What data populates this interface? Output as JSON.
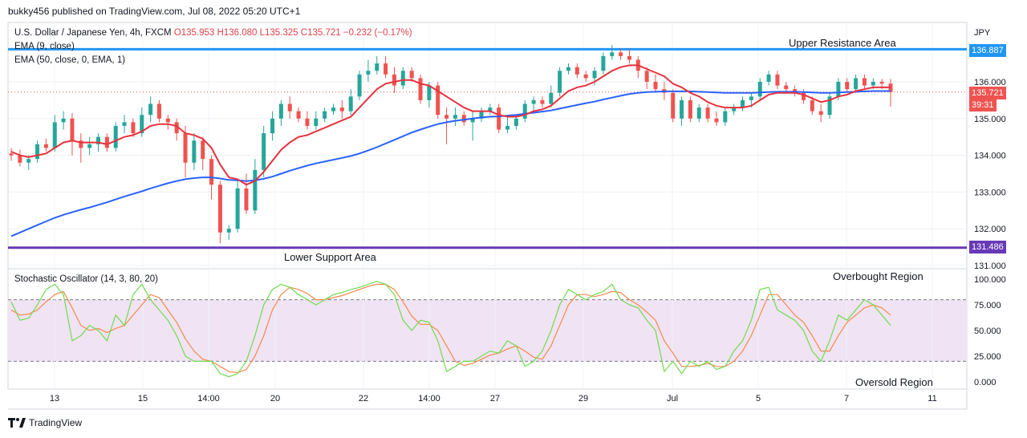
{
  "header": {
    "publish_note": "bukky456 published on TradingView.com, Jul 08, 2022 05:20 UTC+1"
  },
  "legend": {
    "symbol": "U.S. Dollar / Japanese Yen, 4h, FXCM",
    "open": "O135.953",
    "high": "H136.080",
    "low": "L135.325",
    "close": "C135.721",
    "change": "−0.232 (−0.17%)",
    "ema9": "EMA (9, close)",
    "ema50": "EMA (50, close, 0, EMA, 1)",
    "stoch": "Stochastic Oscillator (14, 3, 80, 20)"
  },
  "annotations": {
    "upper": "Upper Resistance Area",
    "lower": "Lower Support Area",
    "overbought": "Overbought Region",
    "oversold": "Oversold Region"
  },
  "price_axis": {
    "currency": "JPY",
    "ticks": [
      "136.000",
      "135.000",
      "134.000",
      "133.000",
      "132.000",
      "131.000"
    ],
    "upper_badge": "136.887",
    "lower_badge": "131.486",
    "last_badge": "135.721",
    "timer_badge": "39:31"
  },
  "stoch_axis": {
    "ticks": [
      "100.000",
      "75.000",
      "50.000",
      "25.000",
      "0.000"
    ]
  },
  "time_axis": {
    "labels": [
      "13",
      "15",
      "14:00",
      "20",
      "22",
      "14:00",
      "27",
      "29",
      "Jul",
      "5",
      "7",
      "11"
    ]
  },
  "footer": {
    "brand": "TradingView"
  },
  "colors": {
    "up": "#26a69a",
    "down": "#ef5350",
    "ema9": "#e8323e",
    "ema50": "#2962ff",
    "resistance": "#2196f3",
    "support": "#673ab7",
    "stoch_k": "#6fdc4e",
    "stoch_d": "#f58a4e",
    "stoch_band": "#f0e3f3"
  },
  "chart_data": {
    "type": "candlestick",
    "y_range": [
      131.0,
      137.0
    ],
    "resistance": 136.887,
    "support": 131.486,
    "last_price": 135.721,
    "candles": [
      [
        134.05,
        134.2,
        133.85,
        134.0
      ],
      [
        134.0,
        134.15,
        133.7,
        133.8
      ],
      [
        133.8,
        134.0,
        133.6,
        133.9
      ],
      [
        133.9,
        134.4,
        133.8,
        134.3
      ],
      [
        134.3,
        134.45,
        134.1,
        134.2
      ],
      [
        134.2,
        135.1,
        134.1,
        134.9
      ],
      [
        134.9,
        135.2,
        134.7,
        135.0
      ],
      [
        135.0,
        135.15,
        134.0,
        134.4
      ],
      [
        134.4,
        134.6,
        133.8,
        134.2
      ],
      [
        134.2,
        134.5,
        134.0,
        134.3
      ],
      [
        134.3,
        134.6,
        134.1,
        134.5
      ],
      [
        134.5,
        134.6,
        134.1,
        134.2
      ],
      [
        134.2,
        134.9,
        134.1,
        134.8
      ],
      [
        134.8,
        135.1,
        134.6,
        134.9
      ],
      [
        134.9,
        135.0,
        134.5,
        134.6
      ],
      [
        134.6,
        135.3,
        134.5,
        135.1
      ],
      [
        135.1,
        135.6,
        134.9,
        135.4
      ],
      [
        135.4,
        135.5,
        134.9,
        135.0
      ],
      [
        135.0,
        135.1,
        134.7,
        134.9
      ],
      [
        134.9,
        135.0,
        134.4,
        134.6
      ],
      [
        134.6,
        134.8,
        133.4,
        133.8
      ],
      [
        133.8,
        134.6,
        133.6,
        134.4
      ],
      [
        134.4,
        134.5,
        133.6,
        133.9
      ],
      [
        133.9,
        134.0,
        132.8,
        133.2
      ],
      [
        133.2,
        133.3,
        131.6,
        131.9
      ],
      [
        131.9,
        132.1,
        131.7,
        132.0
      ],
      [
        132.0,
        133.3,
        131.9,
        133.1
      ],
      [
        133.1,
        133.5,
        132.4,
        132.5
      ],
      [
        132.5,
        133.9,
        132.4,
        133.6
      ],
      [
        133.6,
        134.8,
        133.4,
        134.6
      ],
      [
        134.6,
        135.2,
        134.4,
        135.0
      ],
      [
        135.0,
        135.5,
        134.8,
        135.4
      ],
      [
        135.4,
        135.6,
        135.0,
        135.2
      ],
      [
        135.2,
        135.3,
        134.9,
        135.0
      ],
      [
        135.0,
        135.2,
        134.7,
        134.8
      ],
      [
        134.8,
        135.2,
        134.7,
        135.0
      ],
      [
        135.0,
        135.3,
        134.9,
        135.2
      ],
      [
        135.2,
        135.4,
        135.1,
        135.3
      ],
      [
        135.3,
        135.5,
        135.0,
        135.2
      ],
      [
        135.2,
        135.8,
        135.1,
        135.6
      ],
      [
        135.6,
        136.3,
        135.5,
        136.2
      ],
      [
        136.2,
        136.6,
        136.0,
        136.3
      ],
      [
        136.3,
        136.7,
        136.2,
        136.5
      ],
      [
        136.5,
        136.7,
        136.1,
        136.2
      ],
      [
        136.2,
        136.4,
        135.7,
        135.9
      ],
      [
        135.9,
        136.4,
        135.8,
        136.3
      ],
      [
        136.3,
        136.4,
        136.0,
        136.1
      ],
      [
        136.1,
        136.2,
        135.4,
        135.5
      ],
      [
        135.5,
        136.0,
        135.3,
        135.9
      ],
      [
        135.9,
        136.0,
        135.0,
        135.1
      ],
      [
        135.1,
        135.3,
        134.3,
        135.0
      ],
      [
        135.0,
        135.3,
        134.8,
        135.1
      ],
      [
        135.1,
        135.2,
        134.8,
        134.9
      ],
      [
        134.9,
        135.2,
        134.4,
        135.0
      ],
      [
        135.0,
        135.3,
        134.9,
        135.2
      ],
      [
        135.2,
        135.4,
        135.1,
        135.3
      ],
      [
        135.3,
        135.4,
        134.6,
        134.7
      ],
      [
        134.7,
        135.1,
        134.6,
        134.8
      ],
      [
        134.8,
        135.1,
        134.7,
        135.0
      ],
      [
        135.0,
        135.5,
        134.9,
        135.4
      ],
      [
        135.4,
        135.6,
        135.2,
        135.5
      ],
      [
        135.5,
        135.6,
        135.3,
        135.4
      ],
      [
        135.4,
        135.9,
        135.3,
        135.7
      ],
      [
        135.7,
        136.4,
        135.6,
        136.3
      ],
      [
        136.3,
        136.5,
        136.2,
        136.4
      ],
      [
        136.4,
        136.5,
        136.1,
        136.2
      ],
      [
        136.2,
        136.3,
        136.0,
        136.1
      ],
      [
        136.1,
        136.4,
        135.9,
        136.3
      ],
      [
        136.3,
        136.8,
        136.2,
        136.7
      ],
      [
        136.7,
        137.0,
        136.6,
        136.8
      ],
      [
        136.8,
        136.9,
        136.6,
        136.7
      ],
      [
        136.7,
        136.9,
        136.5,
        136.6
      ],
      [
        136.6,
        136.7,
        136.1,
        136.3
      ],
      [
        136.3,
        136.4,
        135.8,
        136.0
      ],
      [
        136.0,
        136.2,
        135.7,
        135.8
      ],
      [
        135.8,
        136.0,
        135.5,
        135.7
      ],
      [
        135.7,
        135.8,
        134.9,
        135.0
      ],
      [
        135.0,
        135.6,
        134.8,
        135.5
      ],
      [
        135.5,
        135.6,
        134.9,
        135.0
      ],
      [
        135.0,
        135.4,
        134.9,
        135.3
      ],
      [
        135.3,
        135.4,
        134.9,
        135.0
      ],
      [
        135.0,
        135.2,
        134.8,
        134.9
      ],
      [
        134.9,
        135.3,
        134.8,
        135.2
      ],
      [
        135.2,
        135.4,
        135.1,
        135.3
      ],
      [
        135.3,
        135.6,
        135.2,
        135.5
      ],
      [
        135.5,
        135.7,
        135.3,
        135.6
      ],
      [
        135.6,
        136.1,
        135.5,
        136.0
      ],
      [
        136.0,
        136.3,
        135.9,
        136.2
      ],
      [
        136.2,
        136.3,
        135.8,
        135.9
      ],
      [
        135.9,
        136.0,
        135.7,
        135.8
      ],
      [
        135.8,
        135.9,
        135.6,
        135.7
      ],
      [
        135.7,
        135.8,
        135.4,
        135.5
      ],
      [
        135.5,
        135.6,
        135.1,
        135.2
      ],
      [
        135.2,
        135.4,
        134.9,
        135.1
      ],
      [
        135.1,
        135.7,
        135.0,
        135.6
      ],
      [
        135.6,
        136.1,
        135.5,
        136.0
      ],
      [
        136.0,
        136.1,
        135.7,
        135.8
      ],
      [
        135.8,
        136.2,
        135.7,
        136.1
      ],
      [
        136.1,
        136.2,
        135.8,
        135.9
      ],
      [
        135.9,
        136.1,
        135.8,
        136.0
      ],
      [
        136.0,
        136.08,
        135.8,
        135.95
      ],
      [
        135.953,
        136.08,
        135.325,
        135.721
      ]
    ],
    "ema9": [
      134.1,
      134.0,
      133.95,
      134.0,
      134.05,
      134.2,
      134.35,
      134.4,
      134.35,
      134.35,
      134.35,
      134.3,
      134.4,
      134.5,
      134.55,
      134.65,
      134.8,
      134.85,
      134.85,
      134.8,
      134.6,
      134.55,
      134.45,
      134.2,
      133.75,
      133.4,
      133.35,
      133.2,
      133.3,
      133.55,
      133.85,
      134.15,
      134.35,
      134.5,
      134.55,
      134.65,
      134.75,
      134.85,
      134.95,
      135.05,
      135.3,
      135.55,
      135.8,
      135.95,
      136.0,
      136.05,
      136.05,
      135.95,
      135.9,
      135.75,
      135.6,
      135.45,
      135.3,
      135.2,
      135.2,
      135.2,
      135.1,
      135.05,
      135.05,
      135.1,
      135.2,
      135.25,
      135.35,
      135.55,
      135.75,
      135.85,
      135.9,
      136.0,
      136.15,
      136.3,
      136.4,
      136.45,
      136.45,
      136.35,
      136.25,
      136.15,
      135.95,
      135.85,
      135.7,
      135.6,
      135.45,
      135.35,
      135.3,
      135.3,
      135.3,
      135.35,
      135.5,
      135.65,
      135.7,
      135.7,
      135.7,
      135.65,
      135.55,
      135.45,
      135.5,
      135.6,
      135.65,
      135.75,
      135.8,
      135.85,
      135.85,
      135.85
    ],
    "ema50": [
      131.8,
      131.9,
      132.0,
      132.1,
      132.2,
      132.3,
      132.38,
      132.45,
      132.52,
      132.58,
      132.65,
      132.72,
      132.8,
      132.88,
      132.95,
      133.02,
      133.1,
      133.17,
      133.24,
      133.3,
      133.35,
      133.38,
      133.4,
      133.4,
      133.37,
      133.33,
      133.32,
      133.3,
      133.32,
      133.36,
      133.42,
      133.5,
      133.58,
      133.65,
      133.72,
      133.78,
      133.83,
      133.88,
      133.93,
      133.98,
      134.05,
      134.13,
      134.22,
      134.32,
      134.42,
      134.52,
      134.62,
      134.7,
      134.78,
      134.85,
      134.9,
      134.94,
      134.97,
      135.0,
      135.03,
      135.05,
      135.06,
      135.08,
      135.1,
      135.13,
      135.16,
      135.19,
      135.22,
      135.27,
      135.32,
      135.37,
      135.42,
      135.46,
      135.52,
      135.57,
      135.62,
      135.67,
      135.7,
      135.72,
      135.73,
      135.74,
      135.74,
      135.74,
      135.74,
      135.73,
      135.72,
      135.71,
      135.7,
      135.7,
      135.7,
      135.7,
      135.71,
      135.72,
      135.73,
      135.73,
      135.73,
      135.72,
      135.71,
      135.7,
      135.7,
      135.71,
      135.72,
      135.73,
      135.74,
      135.75,
      135.75,
      135.75
    ],
    "stoch_k": [
      78,
      60,
      62,
      75,
      90,
      95,
      85,
      40,
      45,
      55,
      50,
      40,
      65,
      55,
      85,
      95,
      80,
      70,
      60,
      45,
      25,
      20,
      20,
      20,
      8,
      5,
      8,
      20,
      45,
      75,
      90,
      95,
      92,
      85,
      80,
      75,
      80,
      85,
      87,
      90,
      92,
      95,
      98,
      95,
      85,
      60,
      50,
      60,
      58,
      40,
      10,
      15,
      20,
      20,
      25,
      30,
      28,
      40,
      35,
      15,
      20,
      30,
      50,
      75,
      90,
      85,
      80,
      85,
      88,
      95,
      80,
      75,
      72,
      60,
      50,
      10,
      20,
      8,
      20,
      15,
      20,
      12,
      15,
      30,
      40,
      60,
      90,
      92,
      70,
      65,
      60,
      50,
      30,
      20,
      40,
      65,
      60,
      70,
      80,
      75,
      65,
      55
    ],
    "stoch_d": [
      70,
      65,
      66,
      70,
      78,
      85,
      88,
      72,
      55,
      50,
      52,
      48,
      52,
      55,
      65,
      75,
      85,
      82,
      70,
      58,
      42,
      30,
      22,
      20,
      15,
      10,
      9,
      12,
      25,
      45,
      70,
      85,
      92,
      90,
      86,
      80,
      80,
      82,
      84,
      87,
      90,
      93,
      95,
      95,
      90,
      78,
      64,
      56,
      56,
      50,
      35,
      20,
      16,
      18,
      22,
      26,
      28,
      32,
      35,
      30,
      24,
      22,
      35,
      55,
      75,
      85,
      85,
      83,
      85,
      88,
      87,
      80,
      75,
      68,
      60,
      40,
      28,
      15,
      15,
      16,
      18,
      15,
      15,
      20,
      30,
      45,
      65,
      85,
      85,
      75,
      65,
      58,
      45,
      30,
      30,
      45,
      58,
      65,
      72,
      75,
      72,
      65
    ],
    "stoch_bands": {
      "upper": 80,
      "lower": 20
    }
  }
}
